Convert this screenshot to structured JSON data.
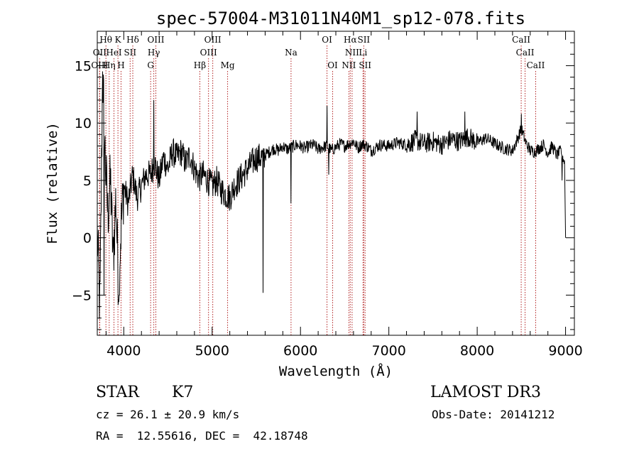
{
  "chart_data": {
    "type": "line",
    "title": "spec-57004-M31011N40M1_sp12-078.fits",
    "xlabel": "Wavelength (Å)",
    "ylabel": "Flux (relative)",
    "xlim": [
      3700,
      9100
    ],
    "ylim": [
      -8.5,
      18
    ],
    "xticks": [
      4000,
      5000,
      6000,
      7000,
      8000,
      9000
    ],
    "yticks": [
      -5,
      0,
      5,
      10,
      15
    ],
    "series_color": "#000000",
    "line_color": "#b22222",
    "spectrum_anchors": [
      [
        3700,
        0.5
      ],
      [
        3730,
        -6.5
      ],
      [
        3760,
        14.5
      ],
      [
        3790,
        7.0
      ],
      [
        3820,
        2.0
      ],
      [
        3850,
        5.0
      ],
      [
        3880,
        -2.0
      ],
      [
        3910,
        3.5
      ],
      [
        3940,
        -4.0
      ],
      [
        3970,
        1.0
      ],
      [
        4000,
        4.5
      ],
      [
        4050,
        3.0
      ],
      [
        4100,
        5.5
      ],
      [
        4150,
        3.5
      ],
      [
        4200,
        4.5
      ],
      [
        4250,
        5.5
      ],
      [
        4300,
        5.5
      ],
      [
        4350,
        6.5
      ],
      [
        4400,
        5.0
      ],
      [
        4450,
        7.0
      ],
      [
        4500,
        6.0
      ],
      [
        4550,
        7.5
      ],
      [
        4600,
        7.0
      ],
      [
        4650,
        7.5
      ],
      [
        4700,
        6.5
      ],
      [
        4750,
        7.2
      ],
      [
        4800,
        6.0
      ],
      [
        4850,
        5.2
      ],
      [
        4900,
        5.5
      ],
      [
        4950,
        5.0
      ],
      [
        5000,
        4.5
      ],
      [
        5050,
        5.0
      ],
      [
        5100,
        4.2
      ],
      [
        5150,
        3.8
      ],
      [
        5200,
        3.5
      ],
      [
        5250,
        4.5
      ],
      [
        5300,
        5.0
      ],
      [
        5350,
        5.5
      ],
      [
        5400,
        6.0
      ],
      [
        5450,
        6.5
      ],
      [
        5500,
        7.0
      ],
      [
        5550,
        7.0
      ],
      [
        5600,
        7.2
      ],
      [
        5650,
        7.5
      ],
      [
        5700,
        7.8
      ],
      [
        5750,
        7.6
      ],
      [
        5800,
        8.0
      ],
      [
        5850,
        7.7
      ],
      [
        5900,
        7.9
      ],
      [
        5950,
        8.1
      ],
      [
        6000,
        8.0
      ],
      [
        6050,
        7.8
      ],
      [
        6100,
        8.0
      ],
      [
        6150,
        8.1
      ],
      [
        6200,
        7.7
      ],
      [
        6250,
        7.9
      ],
      [
        6300,
        8.0
      ],
      [
        6350,
        7.6
      ],
      [
        6400,
        7.9
      ],
      [
        6450,
        8.2
      ],
      [
        6500,
        8.0
      ],
      [
        6550,
        8.2
      ],
      [
        6600,
        8.4
      ],
      [
        6650,
        7.8
      ],
      [
        6700,
        8.2
      ],
      [
        6750,
        8.0
      ],
      [
        6800,
        7.6
      ],
      [
        6900,
        8.1
      ],
      [
        7000,
        8.0
      ],
      [
        7100,
        8.3
      ],
      [
        7200,
        8.1
      ],
      [
        7300,
        8.5
      ],
      [
        7400,
        8.2
      ],
      [
        7500,
        8.4
      ],
      [
        7600,
        8.1
      ],
      [
        7700,
        8.6
      ],
      [
        7800,
        8.4
      ],
      [
        7900,
        8.8
      ],
      [
        8000,
        8.3
      ],
      [
        8100,
        8.7
      ],
      [
        8200,
        8.2
      ],
      [
        8300,
        7.8
      ],
      [
        8400,
        7.6
      ],
      [
        8450,
        8.5
      ],
      [
        8500,
        9.5
      ],
      [
        8550,
        8.3
      ],
      [
        8600,
        7.6
      ],
      [
        8650,
        7.5
      ],
      [
        8700,
        7.8
      ],
      [
        8750,
        8.1
      ],
      [
        8800,
        7.4
      ],
      [
        8850,
        8.0
      ],
      [
        8900,
        7.2
      ],
      [
        8950,
        7.6
      ],
      [
        8990,
        6.5
      ],
      [
        9000,
        0.0
      ]
    ],
    "spectrum_features": [
      {
        "x": 3760,
        "y": 14.5
      },
      {
        "x": 3775,
        "y": -5.0
      },
      {
        "x": 3950,
        "y": -5.0
      },
      {
        "x": 4340,
        "y": 12.0
      },
      {
        "x": 5577,
        "y": -4.8
      },
      {
        "x": 5893,
        "y": 3.0
      },
      {
        "x": 6300,
        "y": 11.5
      },
      {
        "x": 6320,
        "y": 5.5
      },
      {
        "x": 7320,
        "y": 11.0
      },
      {
        "x": 7860,
        "y": 11.0
      },
      {
        "x": 8500,
        "y": 10.8
      },
      {
        "x": 8960,
        "y": 5.0
      }
    ],
    "line_labels": [
      {
        "text": "Hθ",
        "x": 3798,
        "row": 0
      },
      {
        "text": "K",
        "x": 3934,
        "row": 0
      },
      {
        "text": "Hδ",
        "x": 4102,
        "row": 0
      },
      {
        "text": "OIII",
        "x": 4363,
        "row": 0
      },
      {
        "text": "OIII",
        "x": 5007,
        "row": 0
      },
      {
        "text": "OI",
        "x": 6300,
        "row": 0
      },
      {
        "text": "Hα",
        "x": 6563,
        "row": 0
      },
      {
        "text": "SII",
        "x": 6716,
        "row": 0
      },
      {
        "text": "CaII",
        "x": 8498,
        "row": 0
      },
      {
        "text": "OII",
        "x": 3727,
        "row": 1
      },
      {
        "text": "HeI",
        "x": 3889,
        "row": 1
      },
      {
        "text": "SII",
        "x": 4072,
        "row": 1
      },
      {
        "text": "Hγ",
        "x": 4340,
        "row": 1
      },
      {
        "text": "OIII",
        "x": 4959,
        "row": 1
      },
      {
        "text": "Na",
        "x": 5893,
        "row": 1
      },
      {
        "text": "NII",
        "x": 6584,
        "row": 1
      },
      {
        "text": "Li",
        "x": 6708,
        "row": 1
      },
      {
        "text": "CaII",
        "x": 8542,
        "row": 1
      },
      {
        "text": "OIII",
        "x": 3727,
        "row": 2
      },
      {
        "text": "Hη",
        "x": 3835,
        "row": 2
      },
      {
        "text": "H",
        "x": 3969,
        "row": 2
      },
      {
        "text": "G",
        "x": 4304,
        "row": 2
      },
      {
        "text": "Hβ",
        "x": 4861,
        "row": 2
      },
      {
        "text": "Mg",
        "x": 5175,
        "row": 2
      },
      {
        "text": "OI",
        "x": 6364,
        "row": 2
      },
      {
        "text": "NII",
        "x": 6548,
        "row": 2
      },
      {
        "text": "SII",
        "x": 6731,
        "row": 2
      },
      {
        "text": "CaII",
        "x": 8662,
        "row": 2
      }
    ]
  },
  "info": {
    "object_class": "STAR",
    "subclass": "K7",
    "survey": "LAMOST DR3",
    "cz": "cz = 26.1 ± 20.9 km/s",
    "obs_date": "Obs-Date: 20141212",
    "radec": "RA =  12.55616, DEC =  42.18748"
  }
}
